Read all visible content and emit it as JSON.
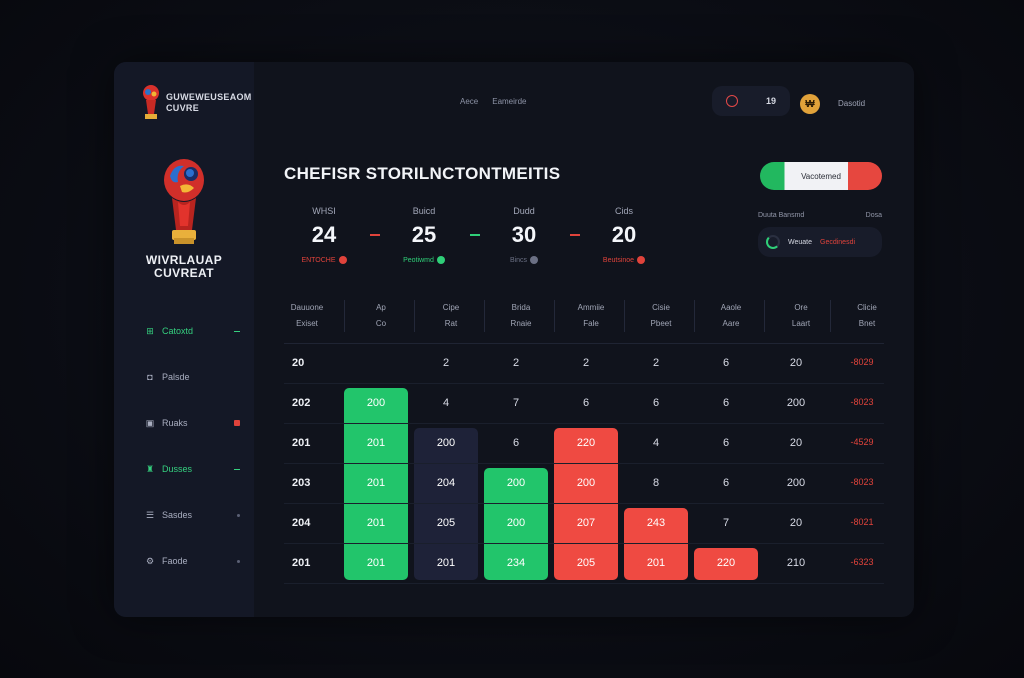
{
  "app": {
    "logo_small_lines": [
      "GUWEWEUSEAOM",
      "CUVRE"
    ],
    "logo_big_lines": [
      "WIVRLAUAP",
      "CUVREAT"
    ]
  },
  "sidebar": {
    "items": [
      {
        "label": "Catoxtd",
        "icon": "grid-icon",
        "active": true,
        "mark": "dash"
      },
      {
        "label": "Palsde",
        "icon": "chat-icon",
        "active": false,
        "mark": "none"
      },
      {
        "label": "Ruaks",
        "icon": "card-icon",
        "active": false,
        "mark": "red-square"
      },
      {
        "label": "Dusses",
        "icon": "trophy-icon",
        "active": true,
        "mark": "dash"
      },
      {
        "label": "Sasdes",
        "icon": "list-icon",
        "active": false,
        "mark": "dot"
      },
      {
        "label": "Faode",
        "icon": "settings-icon",
        "active": false,
        "mark": "dot"
      }
    ]
  },
  "topbar": {
    "nav": [
      "Aece",
      "Eameirde"
    ],
    "pill_text": "19",
    "coin_glyph": "₩",
    "user_name": "Dasotid"
  },
  "title": "CHEFISR STORI‌LNCTONTMEITIS",
  "toggle_label": "Vacotemed",
  "stats": [
    {
      "label": "WHSI",
      "value": "24",
      "sub": "ENTOCHE",
      "sub_color": "#e0433b"
    },
    {
      "label": "Buicd",
      "value": "25",
      "sub": "Peotiwmd",
      "sub_color": "#2fcf78"
    },
    {
      "label": "Dudd",
      "value": "30",
      "sub": "Bincs",
      "sub_color": "#6b7084"
    },
    {
      "label": "Cids",
      "value": "20",
      "sub": "Beutsinoe",
      "sub_color": "#e0433b"
    }
  ],
  "side_widget": {
    "head_left": "Duuta Bansmd",
    "head_right": "Dosa",
    "pill_left": "Weuate",
    "pill_right": "Gecdinesdi"
  },
  "table": {
    "headers": [
      [
        "Dauuone",
        "Exiset"
      ],
      [
        "Ap",
        "Co"
      ],
      [
        "Cipe",
        "Rat"
      ],
      [
        "Brida",
        "Rnaie"
      ],
      [
        "Ammiie",
        "Fale"
      ],
      [
        "Cisie",
        "Pbeet"
      ],
      [
        "Aaole",
        "Aare"
      ],
      [
        "Ore",
        "Laart"
      ],
      [
        "Clicie",
        "Bnet"
      ]
    ],
    "rows": [
      [
        "20",
        "",
        "2",
        "2",
        "2",
        "2",
        "6",
        "20",
        "-8029"
      ],
      [
        "202",
        "200",
        "4",
        "7",
        "6",
        "6",
        "6",
        "200",
        "-8023"
      ],
      [
        "201",
        "201",
        "200",
        "6",
        "220",
        "4",
        "6",
        "20",
        "-4529"
      ],
      [
        "203",
        "201",
        "204",
        "200",
        "200",
        "8",
        "6",
        "200",
        "-8023"
      ],
      [
        "204",
        "201",
        "205",
        "200",
        "207",
        "243",
        "7",
        "20",
        "-8021"
      ],
      [
        "201",
        "201",
        "201",
        "234",
        "205",
        "201",
        "220",
        "210",
        "-6323"
      ]
    ],
    "bars": [
      {
        "col": 1,
        "from_row": 1,
        "color": "#22c56b"
      },
      {
        "col": 2,
        "from_row": 2,
        "color": "#1e2238"
      },
      {
        "col": 3,
        "from_row": 3,
        "color": "#22c56b"
      },
      {
        "col": 4,
        "from_row": 2,
        "color": "#ef4a42"
      },
      {
        "col": 5,
        "from_row": 4,
        "color": "#ef4a42"
      },
      {
        "col": 6,
        "from_row": 5,
        "color": "#ef4a42"
      }
    ]
  }
}
